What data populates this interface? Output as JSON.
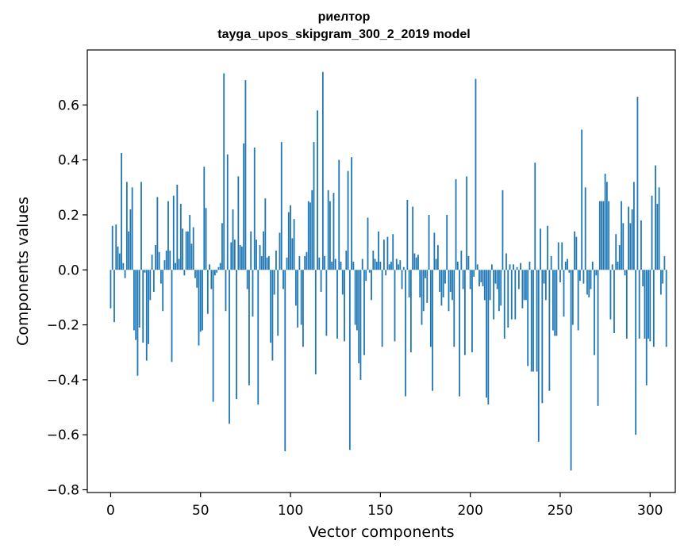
{
  "chart_data": {
    "type": "bar",
    "title": "риелтор",
    "subtitle": "tayga_upos_skipgram_300_2_2019 model",
    "xlabel": "Vector components",
    "ylabel": "Components values",
    "xlim": [
      -13,
      314
    ],
    "ylim": [
      -0.81,
      0.8
    ],
    "xticks": [
      0,
      50,
      100,
      150,
      200,
      250,
      300
    ],
    "xtick_labels": [
      "0",
      "50",
      "100",
      "150",
      "200",
      "250",
      "300"
    ],
    "yticks": [
      -0.8,
      -0.6,
      -0.4,
      -0.2,
      0.0,
      0.2,
      0.4,
      0.6
    ],
    "ytick_labels": [
      "−0.8",
      "−0.6",
      "−0.4",
      "−0.2",
      "0.0",
      "0.2",
      "0.4",
      "0.6"
    ],
    "bar_color": "#1f77b4",
    "grid": false,
    "x_start": 0,
    "values": [
      -0.14,
      0.16,
      -0.19,
      0.165,
      0.085,
      0.06,
      0.425,
      0.025,
      -0.03,
      0.32,
      0.14,
      0.22,
      0.3,
      -0.22,
      -0.255,
      -0.385,
      -0.21,
      0.32,
      -0.265,
      -0.01,
      -0.33,
      -0.27,
      -0.11,
      0.055,
      -0.08,
      0.09,
      0.265,
      0.065,
      -0.05,
      -0.15,
      0.035,
      0.07,
      0.25,
      0.07,
      -0.335,
      0.27,
      0.025,
      0.31,
      0.04,
      0.24,
      0.15,
      -0.02,
      0.14,
      0.14,
      0.2,
      0.095,
      0.155,
      -0.03,
      -0.065,
      -0.275,
      -0.225,
      -0.22,
      0.375,
      0.225,
      -0.16,
      0.02,
      -0.07,
      -0.48,
      -0.02,
      -0.01,
      0.01,
      0.025,
      0.17,
      0.715,
      -0.15,
      0.42,
      -0.56,
      0.1,
      0.22,
      0.11,
      -0.47,
      0.34,
      0.09,
      0.085,
      0.46,
      0.69,
      -0.07,
      -0.42,
      0.14,
      -0.17,
      0.445,
      0.11,
      -0.49,
      0.09,
      0.05,
      0.14,
      0.26,
      0.045,
      0.05,
      -0.265,
      -0.33,
      -0.09,
      0.07,
      -0.24,
      0.135,
      0.465,
      -0.07,
      -0.66,
      0.045,
      0.21,
      0.235,
      0.115,
      0.185,
      -0.13,
      -0.21,
      0.05,
      -0.2,
      -0.28,
      0.05,
      0.065,
      0.25,
      0.245,
      0.29,
      0.465,
      -0.38,
      0.58,
      0.045,
      -0.08,
      0.72,
      0.05,
      -0.24,
      0.29,
      0.25,
      0.03,
      0.28,
      0.04,
      -0.25,
      0.4,
      0.03,
      -0.09,
      -0.26,
      0.07,
      0.36,
      -0.655,
      0.41,
      0.03,
      -0.2,
      -0.22,
      -0.34,
      -0.4,
      0.04,
      -0.31,
      -0.04,
      0.19,
      -0.01,
      -0.11,
      0.07,
      0.04,
      0.03,
      0.14,
      0.03,
      -0.28,
      0.11,
      -0.02,
      0.12,
      0.02,
      0.03,
      0.13,
      -0.26,
      0.04,
      0.02,
      0.035,
      -0.07,
      0.01,
      -0.46,
      0.255,
      -0.1,
      -0.3,
      0.23,
      0.06,
      0.045,
      0.055,
      -0.1,
      -0.2,
      -0.15,
      -0.03,
      -0.12,
      0.2,
      -0.28,
      -0.44,
      0.135,
      0.04,
      0.09,
      -0.08,
      -0.13,
      -0.1,
      -0.05,
      0.2,
      -0.15,
      -0.08,
      -0.11,
      -0.28,
      0.33,
      0.03,
      -0.46,
      0.07,
      -0.07,
      -0.31,
      0.34,
      0.05,
      -0.07,
      -0.3,
      -0.025,
      0.695,
      0.02,
      -0.06,
      -0.045,
      -0.06,
      -0.11,
      -0.465,
      -0.49,
      -0.11,
      0.02,
      -0.18,
      -0.05,
      -0.07,
      -0.15,
      -0.13,
      0.29,
      -0.25,
      0.06,
      -0.21,
      0.02,
      -0.18,
      0.02,
      -0.18,
      0.01,
      -0.07,
      0.025,
      -0.14,
      -0.11,
      -0.11,
      -0.35,
      0.03,
      -0.37,
      -0.37,
      0.39,
      -0.37,
      -0.625,
      0.15,
      -0.485,
      -0.05,
      -0.11,
      0.16,
      -0.44,
      0.05,
      -0.22,
      -0.24,
      -0.24,
      0.1,
      -0.045,
      0.1,
      -0.17,
      0.03,
      0.04,
      -0.01,
      -0.73,
      -0.2,
      0.14,
      0.12,
      -0.22,
      -0.04,
      0.51,
      -0.05,
      0.3,
      -0.09,
      -0.1,
      -0.07,
      0.03,
      -0.31,
      -0.02,
      -0.495,
      0.25,
      0.25,
      0.25,
      0.35,
      0.32,
      0.25,
      -0.18,
      0.02,
      -0.23,
      0.13,
      0.03,
      0.09,
      0.25,
      0.17,
      -0.02,
      -0.25,
      0.23,
      0.17,
      0.22,
      0.32,
      -0.6,
      0.63,
      -0.25,
      0.18,
      -0.06,
      -0.25,
      -0.42,
      -0.25,
      -0.26,
      0.27,
      -0.28,
      0.38,
      0.24,
      0.3,
      -0.09,
      -0.05,
      0.05,
      -0.28
    ]
  }
}
